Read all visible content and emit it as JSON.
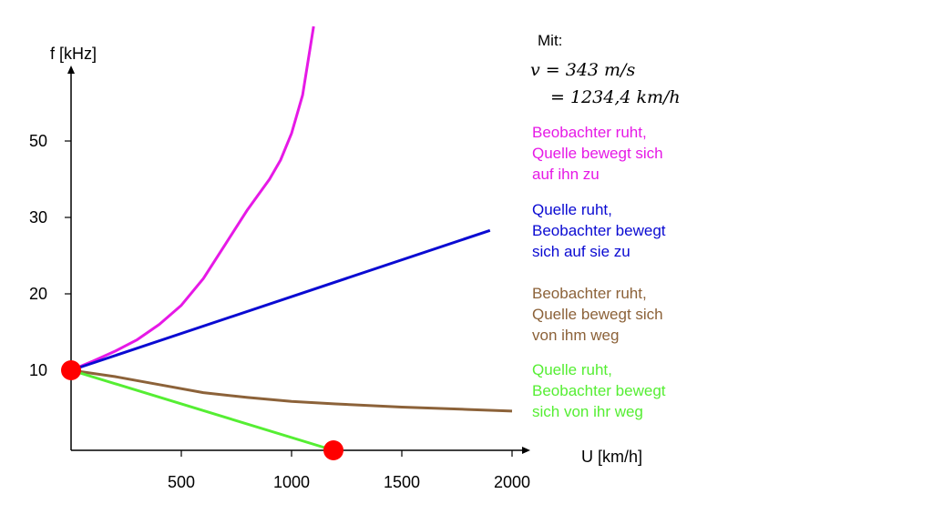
{
  "chart_data": {
    "type": "line",
    "xlabel": "U [km/h]",
    "ylabel": "f [kHz]",
    "xticks": [
      500,
      1000,
      1500,
      2000
    ],
    "yticks": [
      10,
      20,
      30,
      50
    ],
    "xlim": [
      0,
      2050
    ],
    "series": [
      {
        "name": "Beobachter ruht, Quelle bewegt sich auf ihn zu",
        "color": "#e619e6",
        "x": [
          0,
          100,
          200,
          300,
          400,
          500,
          600,
          700,
          800,
          900,
          950,
          1000,
          1050,
          1100
        ],
        "y": [
          10,
          11.2,
          12.5,
          14,
          16,
          18.5,
          22,
          26.5,
          32,
          40,
          45,
          52,
          62,
          80
        ]
      },
      {
        "name": "Quelle ruht, Beobachter bewegt sich auf sie zu",
        "color": "#0a0ad2",
        "x": [
          0,
          1900
        ],
        "y": [
          10,
          28.3
        ]
      },
      {
        "name": "Beobachter ruht, Quelle bewegt sich von ihm weg",
        "color": "#8c6239",
        "x": [
          0,
          200,
          400,
          600,
          800,
          1000,
          1200,
          1500,
          1800,
          2000
        ],
        "y": [
          10,
          9.2,
          8.2,
          7.2,
          6.6,
          6.1,
          5.8,
          5.4,
          5.1,
          4.9
        ]
      },
      {
        "name": "Quelle ruht, Beobachter bewegt sich von ihr weg",
        "color": "#55ee33",
        "x": [
          0,
          1190
        ],
        "y": [
          10,
          0
        ]
      }
    ],
    "points": [
      {
        "x": 0,
        "y": 10,
        "color": "#ff0000"
      },
      {
        "x": 1190,
        "y": 0,
        "color": "#ff0000"
      }
    ]
  },
  "notes": {
    "mit": "Mit:",
    "formula_line1": "v = 343  m/s",
    "formula_line2": "= 1234,4  km/h",
    "legend": [
      {
        "lines": [
          "Beobachter ruht,",
          "Quelle bewegt sich",
          "auf ihn zu"
        ],
        "color": "#e619e6"
      },
      {
        "lines": [
          "Quelle ruht,",
          "Beobachter bewegt",
          "sich auf sie zu"
        ],
        "color": "#0a0ad2"
      },
      {
        "lines": [
          "Beobachter ruht,",
          "Quelle bewegt sich",
          "von ihm weg"
        ],
        "color": "#8c6239"
      },
      {
        "lines": [
          "Quelle ruht,",
          "Beobachter bewegt",
          "sich von ihr weg"
        ],
        "color": "#55ee33"
      }
    ]
  }
}
